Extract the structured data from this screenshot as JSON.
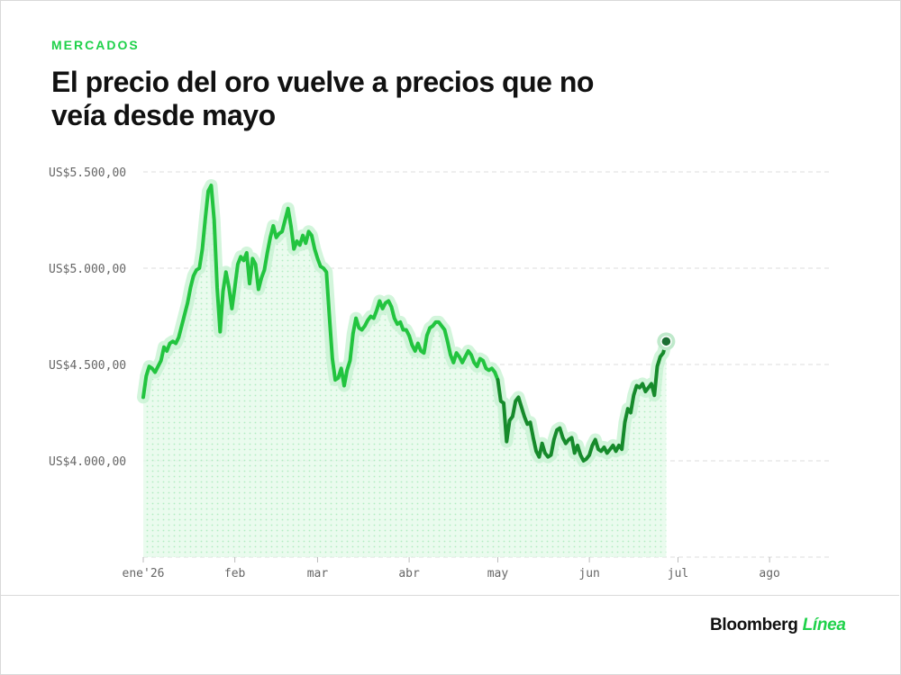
{
  "header": {
    "kicker": "MERCADOS",
    "title": "El precio del oro vuelve a precios que no veía desde mayo"
  },
  "brand": {
    "name": "Bloomberg",
    "accent": "Línea"
  },
  "colors": {
    "accent": "#1fd14a",
    "line_light": "#22c43f",
    "line_dark": "#168a2b",
    "fill": "#e3f9e8"
  },
  "chart_data": {
    "type": "line",
    "title": "El precio del oro vuelve a precios que no veía desde mayo",
    "ylabel": "",
    "xlabel": "",
    "ylim": [
      3500,
      5500
    ],
    "yticks": [
      4000,
      4500,
      5000,
      5500
    ],
    "ytick_labels": [
      "US$4.000,00",
      "US$4.500,00",
      "US$5.000,00",
      "US$5.500,00"
    ],
    "xticks": [
      {
        "label": "ene'26",
        "day": 0
      },
      {
        "label": "feb",
        "day": 31
      },
      {
        "label": "mar",
        "day": 59
      },
      {
        "label": "abr",
        "day": 90
      },
      {
        "label": "may",
        "day": 120
      },
      {
        "label": "jun",
        "day": 151
      },
      {
        "label": "jul",
        "day": 181
      },
      {
        "label": "ago",
        "day": 212
      }
    ],
    "grid": true,
    "series": [
      {
        "points": [
          [
            0,
            4330
          ],
          [
            1,
            4440
          ],
          [
            2,
            4490
          ],
          [
            3,
            4480
          ],
          [
            4,
            4460
          ],
          [
            5,
            4490
          ],
          [
            6,
            4520
          ],
          [
            7,
            4590
          ],
          [
            8,
            4570
          ],
          [
            9,
            4610
          ],
          [
            10,
            4620
          ],
          [
            11,
            4610
          ],
          [
            12,
            4640
          ],
          [
            13,
            4700
          ],
          [
            14,
            4760
          ],
          [
            15,
            4820
          ],
          [
            16,
            4900
          ],
          [
            17,
            4960
          ],
          [
            18,
            4990
          ],
          [
            19,
            5000
          ],
          [
            20,
            5100
          ],
          [
            21,
            5260
          ],
          [
            22,
            5400
          ],
          [
            23,
            5430
          ],
          [
            24,
            5250
          ],
          [
            25,
            4900
          ],
          [
            26,
            4670
          ],
          [
            27,
            4880
          ],
          [
            28,
            4980
          ],
          [
            29,
            4900
          ],
          [
            30,
            4790
          ],
          [
            31,
            4900
          ],
          [
            32,
            5020
          ],
          [
            33,
            5060
          ],
          [
            34,
            5040
          ],
          [
            35,
            5080
          ],
          [
            36,
            4920
          ],
          [
            37,
            5050
          ],
          [
            38,
            5020
          ],
          [
            39,
            4890
          ],
          [
            40,
            4950
          ],
          [
            41,
            4990
          ],
          [
            42,
            5080
          ],
          [
            43,
            5160
          ],
          [
            44,
            5220
          ],
          [
            45,
            5160
          ],
          [
            46,
            5180
          ],
          [
            47,
            5190
          ],
          [
            48,
            5250
          ],
          [
            49,
            5310
          ],
          [
            50,
            5220
          ],
          [
            51,
            5100
          ],
          [
            52,
            5140
          ],
          [
            53,
            5120
          ],
          [
            54,
            5170
          ],
          [
            55,
            5130
          ],
          [
            56,
            5190
          ],
          [
            57,
            5170
          ],
          [
            58,
            5100
          ],
          [
            59,
            5050
          ],
          [
            60,
            5010
          ],
          [
            61,
            5000
          ],
          [
            62,
            4980
          ],
          [
            63,
            4750
          ],
          [
            64,
            4530
          ],
          [
            65,
            4420
          ],
          [
            66,
            4430
          ],
          [
            67,
            4480
          ],
          [
            68,
            4390
          ],
          [
            69,
            4470
          ],
          [
            70,
            4520
          ],
          [
            71,
            4660
          ],
          [
            72,
            4740
          ],
          [
            73,
            4690
          ],
          [
            74,
            4680
          ],
          [
            75,
            4700
          ],
          [
            76,
            4730
          ],
          [
            77,
            4750
          ],
          [
            78,
            4740
          ],
          [
            79,
            4780
          ],
          [
            80,
            4830
          ],
          [
            81,
            4790
          ],
          [
            82,
            4820
          ],
          [
            83,
            4830
          ],
          [
            84,
            4800
          ],
          [
            85,
            4740
          ],
          [
            86,
            4710
          ],
          [
            87,
            4720
          ],
          [
            88,
            4680
          ],
          [
            89,
            4680
          ],
          [
            90,
            4650
          ],
          [
            91,
            4600
          ],
          [
            92,
            4570
          ],
          [
            93,
            4610
          ],
          [
            94,
            4570
          ],
          [
            95,
            4560
          ],
          [
            96,
            4650
          ],
          [
            97,
            4690
          ],
          [
            98,
            4700
          ],
          [
            99,
            4720
          ],
          [
            100,
            4720
          ],
          [
            101,
            4700
          ],
          [
            102,
            4680
          ],
          [
            103,
            4620
          ],
          [
            104,
            4550
          ],
          [
            105,
            4510
          ],
          [
            106,
            4560
          ],
          [
            107,
            4540
          ],
          [
            108,
            4510
          ],
          [
            109,
            4540
          ],
          [
            110,
            4570
          ],
          [
            111,
            4550
          ],
          [
            112,
            4510
          ],
          [
            113,
            4490
          ],
          [
            114,
            4530
          ],
          [
            115,
            4520
          ],
          [
            116,
            4480
          ],
          [
            117,
            4470
          ],
          [
            118,
            4480
          ],
          [
            119,
            4460
          ],
          [
            120,
            4420
          ],
          [
            121,
            4310
          ],
          [
            122,
            4300
          ],
          [
            123,
            4100
          ],
          [
            124,
            4210
          ],
          [
            125,
            4230
          ],
          [
            126,
            4310
          ],
          [
            127,
            4330
          ],
          [
            128,
            4280
          ],
          [
            129,
            4230
          ],
          [
            130,
            4190
          ],
          [
            131,
            4200
          ],
          [
            132,
            4120
          ],
          [
            133,
            4050
          ],
          [
            134,
            4020
          ],
          [
            135,
            4090
          ],
          [
            136,
            4040
          ],
          [
            137,
            4020
          ],
          [
            138,
            4030
          ],
          [
            139,
            4110
          ],
          [
            140,
            4160
          ],
          [
            141,
            4170
          ],
          [
            142,
            4120
          ],
          [
            143,
            4090
          ],
          [
            144,
            4110
          ],
          [
            145,
            4120
          ],
          [
            146,
            4040
          ],
          [
            147,
            4080
          ],
          [
            148,
            4030
          ],
          [
            149,
            4000
          ],
          [
            150,
            4010
          ],
          [
            151,
            4030
          ],
          [
            152,
            4080
          ],
          [
            153,
            4110
          ],
          [
            154,
            4060
          ],
          [
            155,
            4050
          ],
          [
            156,
            4070
          ],
          [
            157,
            4040
          ],
          [
            158,
            4060
          ],
          [
            159,
            4080
          ],
          [
            160,
            4050
          ],
          [
            161,
            4080
          ],
          [
            162,
            4060
          ],
          [
            163,
            4200
          ],
          [
            164,
            4270
          ],
          [
            165,
            4250
          ],
          [
            166,
            4340
          ],
          [
            167,
            4390
          ],
          [
            168,
            4380
          ],
          [
            169,
            4400
          ],
          [
            170,
            4360
          ],
          [
            171,
            4380
          ],
          [
            172,
            4400
          ],
          [
            173,
            4340
          ],
          [
            174,
            4490
          ],
          [
            175,
            4540
          ],
          [
            176,
            4560
          ],
          [
            177,
            4620
          ]
        ]
      }
    ],
    "last_point_marker": true
  }
}
